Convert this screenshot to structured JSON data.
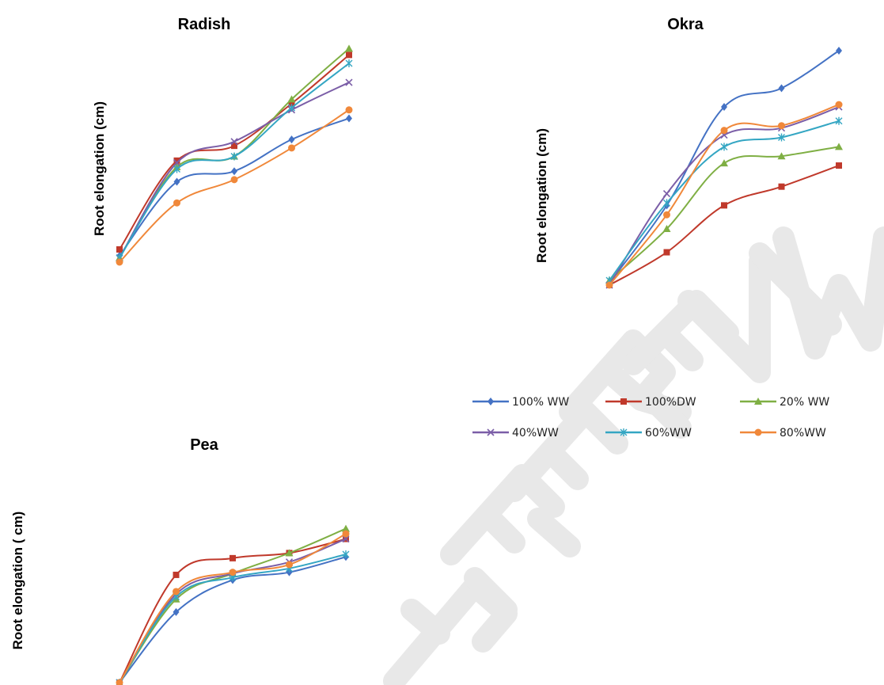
{
  "watermark": "PEER REVIEW",
  "legend": [
    {
      "label": "100% WW",
      "color": "#4472C4",
      "marker": "diamond"
    },
    {
      "label": "100%DW",
      "color": "#C0392B",
      "marker": "square"
    },
    {
      "label": "20% WW",
      "color": "#7FAF44",
      "marker": "triangle"
    },
    {
      "label": "40%WW",
      "color": "#7B5EA7",
      "marker": "x"
    },
    {
      "label": "60%WW",
      "color": "#34A6C3",
      "marker": "star"
    },
    {
      "label": "80%WW",
      "color": "#F0883A",
      "marker": "circle"
    }
  ],
  "chart_data": [
    {
      "type": "line",
      "title": "Radish",
      "xlabel": "",
      "ylabel": "Root elongation (cm)",
      "ylim": [
        0,
        100
      ],
      "x": [
        1,
        2,
        3,
        4,
        5
      ],
      "series": [
        {
          "name": "100% WW",
          "values": [
            3,
            38,
            43,
            58,
            68
          ]
        },
        {
          "name": "100%DW",
          "values": [
            6,
            48,
            55,
            75,
            98
          ]
        },
        {
          "name": "20% WW",
          "values": [
            2,
            45,
            50,
            77,
            101
          ]
        },
        {
          "name": "40%WW",
          "values": [
            2,
            47,
            57,
            72,
            85
          ]
        },
        {
          "name": "60%WW",
          "values": [
            2,
            44,
            50,
            73,
            94
          ]
        },
        {
          "name": "80%WW",
          "values": [
            0,
            28,
            39,
            54,
            72
          ]
        }
      ]
    },
    {
      "type": "line",
      "title": "Okra",
      "xlabel": "",
      "ylabel": "Root elongation (cm)",
      "ylim": [
        0,
        100
      ],
      "x": [
        1,
        2,
        3,
        4,
        5
      ],
      "series": [
        {
          "name": "100% WW",
          "values": [
            1,
            34,
            76,
            84,
            100
          ]
        },
        {
          "name": "100%DW",
          "values": [
            0,
            14,
            34,
            42,
            51
          ]
        },
        {
          "name": "20% WW",
          "values": [
            2,
            24,
            52,
            55,
            59
          ]
        },
        {
          "name": "40%WW",
          "values": [
            0,
            39,
            64,
            67,
            76
          ]
        },
        {
          "name": "60%WW",
          "values": [
            2,
            35,
            59,
            63,
            70
          ]
        },
        {
          "name": "80%WW",
          "values": [
            0,
            30,
            66,
            68,
            77
          ]
        }
      ]
    },
    {
      "type": "line",
      "title": "Pea",
      "xlabel": "",
      "ylabel": "Root elongation ( cm)",
      "ylim": [
        0,
        100
      ],
      "x": [
        1,
        2,
        3,
        4,
        5
      ],
      "series": [
        {
          "name": "100% WW",
          "values": [
            0,
            55,
            80,
            86,
            98
          ]
        },
        {
          "name": "100%DW",
          "values": [
            0,
            84,
            97,
            101,
            112
          ]
        },
        {
          "name": "20% WW",
          "values": [
            0,
            65,
            85,
            101,
            120
          ]
        },
        {
          "name": "40%WW",
          "values": [
            0,
            69,
            85,
            94,
            112
          ]
        },
        {
          "name": "60%WW",
          "values": [
            0,
            67,
            82,
            89,
            100
          ]
        },
        {
          "name": "80%WW",
          "values": [
            0,
            71,
            86,
            92,
            116
          ]
        }
      ]
    }
  ]
}
